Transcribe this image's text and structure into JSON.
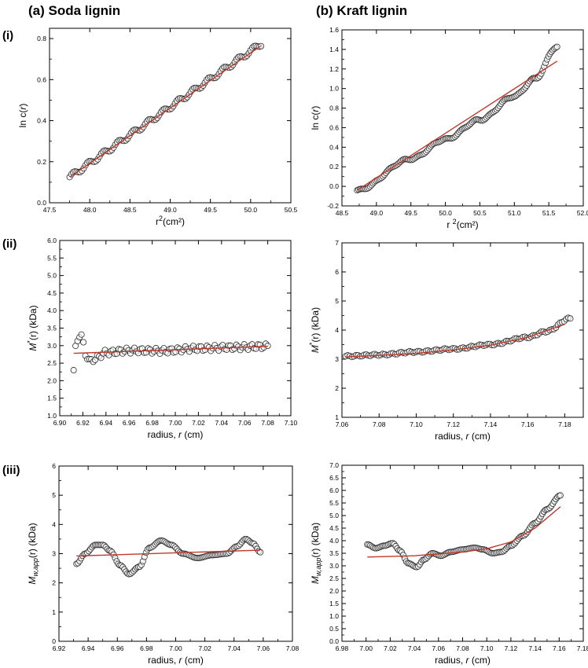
{
  "figure": {
    "column_titles": [
      "(a) Soda lignin",
      "(b) Kraft lignin"
    ],
    "row_labels": [
      "(i)",
      "(ii)",
      "(iii)"
    ]
  },
  "colors": {
    "fit_line": "#c0392b",
    "marker_edge": "#2b2b2b",
    "marker_fill": "#ffffff"
  },
  "chart_data": [
    {
      "id": "a-i",
      "type": "scatter",
      "title": "",
      "xlabel": {
        "pre": "r",
        "sup": "2",
        "post": "(cm²)"
      },
      "ylabel": {
        "pre": "ln c(",
        "italic": "r",
        "post": ")"
      },
      "xlim": [
        47.5,
        50.5
      ],
      "ylim": [
        0.0,
        0.85
      ],
      "xticks": [
        47.5,
        48.0,
        48.5,
        49.0,
        49.5,
        50.0,
        50.5
      ],
      "yticks": [
        0.0,
        0.2,
        0.4,
        0.6,
        0.8
      ],
      "xtick_decimals": 1,
      "ytick_decimals": 1,
      "series": [
        {
          "kind": "markers",
          "x_range": [
            47.75,
            50.13
          ],
          "count": 110,
          "base": "linear",
          "base_params": [
            47.75,
            0.125,
            50.13,
            0.775
          ],
          "wobble": [
            0.012,
            0.35
          ]
        },
        {
          "kind": "fit",
          "x": [
            47.75,
            50.13
          ],
          "y": [
            0.125,
            0.765
          ]
        }
      ]
    },
    {
      "id": "b-i",
      "type": "scatter",
      "title": "",
      "xlabel": {
        "pre": "r ",
        "sup": "2",
        "post": "(cm²)"
      },
      "ylabel": {
        "pre": "ln c(",
        "italic": "r",
        "post": ")"
      },
      "xlim": [
        48.5,
        52.0
      ],
      "ylim": [
        -0.2,
        1.6
      ],
      "xticks": [
        48.5,
        49.0,
        49.5,
        50.0,
        50.5,
        51.0,
        51.5,
        52.0
      ],
      "yticks": [
        -0.2,
        0.0,
        0.2,
        0.4,
        0.6,
        0.8,
        1.0,
        1.2,
        1.4,
        1.6
      ],
      "xtick_decimals": 1,
      "ytick_decimals": 1,
      "series": [
        {
          "kind": "markers",
          "x_range": [
            48.72,
            51.62
          ],
          "count": 140,
          "base": "curve",
          "base_params": [
            [
              48.72,
              -0.04
            ],
            [
              49.5,
              0.28
            ],
            [
              50.0,
              0.48
            ],
            [
              50.5,
              0.68
            ],
            [
              51.0,
              0.92
            ],
            [
              51.3,
              1.1
            ],
            [
              51.62,
              1.43
            ]
          ],
          "wobble": [
            0.01,
            0.3
          ]
        },
        {
          "kind": "fit",
          "x": [
            48.72,
            51.62
          ],
          "y": [
            -0.04,
            1.28
          ]
        }
      ]
    },
    {
      "id": "a-ii",
      "type": "scatter",
      "title": "",
      "xlabel": {
        "pre": "radius, ",
        "italic": "r",
        "post": " (cm)"
      },
      "ylabel": {
        "pre": "M",
        "sup": "*",
        "post": "(r) (kDa)",
        "italic_first": true
      },
      "xlim": [
        6.9,
        7.1
      ],
      "ylim": [
        1.0,
        6.0
      ],
      "xticks": [
        6.9,
        6.92,
        6.94,
        6.96,
        6.98,
        7.0,
        7.02,
        7.04,
        7.06,
        7.08,
        7.1
      ],
      "yticks": [
        1.0,
        1.5,
        2.0,
        2.5,
        3.0,
        3.5,
        4.0,
        4.5,
        5.0,
        5.5,
        6.0
      ],
      "xtick_decimals": 2,
      "ytick_decimals": 1,
      "series": [
        {
          "kind": "markers",
          "x_range": [
            6.912,
            7.08
          ],
          "count": 100,
          "base": "curve",
          "base_params": [
            [
              6.912,
              2.3
            ],
            [
              6.914,
              2.95
            ],
            [
              6.916,
              3.2
            ],
            [
              6.918,
              3.4
            ],
            [
              6.92,
              3.05
            ],
            [
              6.923,
              2.7
            ],
            [
              6.926,
              2.55
            ],
            [
              6.93,
              2.62
            ],
            [
              6.94,
              2.8
            ],
            [
              6.96,
              2.86
            ],
            [
              6.99,
              2.85
            ],
            [
              7.02,
              2.92
            ],
            [
              7.05,
              2.95
            ],
            [
              7.08,
              2.98
            ]
          ],
          "wobble": [
            0.08,
            0.8
          ]
        },
        {
          "kind": "fit",
          "x": [
            6.912,
            7.08
          ],
          "y": [
            2.78,
            2.98
          ]
        }
      ]
    },
    {
      "id": "b-ii",
      "type": "scatter",
      "title": "",
      "xlabel": {
        "pre": "radius, ",
        "italic": "r",
        "post": " (cm)"
      },
      "ylabel": {
        "pre": "M",
        "sup": "*",
        "post": "(r) (kDa)",
        "italic_first": true
      },
      "xlim": [
        7.06,
        7.19
      ],
      "ylim": [
        1.0,
        7.0
      ],
      "xticks": [
        7.06,
        7.08,
        7.1,
        7.12,
        7.14,
        7.16,
        7.18
      ],
      "yticks": [
        1,
        2,
        3,
        4,
        5,
        6,
        7
      ],
      "xtick_decimals": 2,
      "ytick_decimals": 0,
      "series": [
        {
          "kind": "markers",
          "x_range": [
            7.062,
            7.183
          ],
          "count": 110,
          "base": "curve",
          "base_params": [
            [
              7.062,
              3.1
            ],
            [
              7.08,
              3.15
            ],
            [
              7.1,
              3.25
            ],
            [
              7.12,
              3.35
            ],
            [
              7.14,
              3.5
            ],
            [
              7.16,
              3.75
            ],
            [
              7.17,
              3.95
            ],
            [
              7.183,
              4.4
            ]
          ],
          "wobble": [
            0.03,
            0.7
          ]
        },
        {
          "kind": "fit",
          "x": [
            7.062,
            7.08,
            7.1,
            7.12,
            7.14,
            7.16,
            7.18
          ],
          "y": [
            3.08,
            3.13,
            3.2,
            3.32,
            3.48,
            3.75,
            4.2
          ]
        }
      ]
    },
    {
      "id": "a-iii",
      "type": "scatter",
      "title": "",
      "xlabel": {
        "pre": "radius, ",
        "italic": "r",
        "post": " (cm)"
      },
      "ylabel": {
        "pre": "M",
        "sub": "w,app",
        "post": "(r) (kDa)",
        "italic_first": true
      },
      "xlim": [
        6.92,
        7.08
      ],
      "ylim": [
        0,
        6
      ],
      "xticks": [
        6.92,
        6.94,
        6.96,
        6.98,
        7.0,
        7.02,
        7.04,
        7.06,
        7.08
      ],
      "yticks": [
        0,
        1,
        2,
        3,
        4,
        5,
        6
      ],
      "xtick_decimals": 2,
      "ytick_decimals": 0,
      "series": [
        {
          "kind": "markers",
          "x_range": [
            6.932,
            7.058
          ],
          "count": 120,
          "base": "curve",
          "base_params": [
            [
              6.932,
              2.65
            ],
            [
              6.938,
              3.0
            ],
            [
              6.945,
              3.3
            ],
            [
              6.95,
              3.3
            ],
            [
              6.955,
              3.1
            ],
            [
              6.962,
              2.6
            ],
            [
              6.968,
              2.3
            ],
            [
              6.975,
              2.55
            ],
            [
              6.982,
              3.2
            ],
            [
              6.99,
              3.45
            ],
            [
              6.997,
              3.3
            ],
            [
              7.005,
              3.0
            ],
            [
              7.015,
              2.85
            ],
            [
              7.025,
              2.95
            ],
            [
              7.035,
              3.0
            ],
            [
              7.042,
              3.25
            ],
            [
              7.048,
              3.5
            ],
            [
              7.053,
              3.35
            ],
            [
              7.058,
              3.05
            ]
          ],
          "wobble": [
            0.0,
            0.0
          ]
        },
        {
          "kind": "fit",
          "x": [
            6.932,
            7.058
          ],
          "y": [
            2.92,
            3.12
          ]
        }
      ]
    },
    {
      "id": "b-iii",
      "type": "scatter",
      "title": "",
      "xlabel": {
        "pre": "radius, ",
        "italic": "r",
        "post": " (cm)"
      },
      "ylabel": {
        "pre": "M",
        "sub": "w,app",
        "post": "(r) (kDa)",
        "italic_first": true
      },
      "xlim": [
        6.98,
        7.18
      ],
      "ylim": [
        0.0,
        7.0
      ],
      "xticks": [
        6.98,
        7.0,
        7.02,
        7.04,
        7.06,
        7.08,
        7.1,
        7.12,
        7.14,
        7.16,
        7.18
      ],
      "yticks": [
        0.0,
        0.5,
        1.0,
        1.5,
        2.0,
        2.5,
        3.0,
        3.5,
        4.0,
        4.5,
        5.0,
        5.5,
        6.0,
        6.5,
        7.0
      ],
      "xtick_decimals": 2,
      "ytick_decimals": 1,
      "series": [
        {
          "kind": "markers",
          "x_range": [
            7.001,
            7.161
          ],
          "count": 130,
          "base": "curve",
          "base_params": [
            [
              7.001,
              3.85
            ],
            [
              7.008,
              3.7
            ],
            [
              7.015,
              3.8
            ],
            [
              7.022,
              3.9
            ],
            [
              7.028,
              3.6
            ],
            [
              7.035,
              3.1
            ],
            [
              7.042,
              2.95
            ],
            [
              7.048,
              3.25
            ],
            [
              7.055,
              3.5
            ],
            [
              7.062,
              3.4
            ],
            [
              7.07,
              3.55
            ],
            [
              7.08,
              3.65
            ],
            [
              7.09,
              3.72
            ],
            [
              7.097,
              3.65
            ],
            [
              7.105,
              3.5
            ],
            [
              7.112,
              3.55
            ],
            [
              7.12,
              3.8
            ],
            [
              7.13,
              4.2
            ],
            [
              7.14,
              4.7
            ],
            [
              7.15,
              5.25
            ],
            [
              7.161,
              5.8
            ]
          ],
          "wobble": [
            0.0,
            0.0
          ]
        },
        {
          "kind": "fit",
          "x": [
            7.001,
            7.04,
            7.08,
            7.1,
            7.12,
            7.14,
            7.161
          ],
          "y": [
            3.35,
            3.4,
            3.55,
            3.68,
            3.95,
            4.5,
            5.35
          ]
        }
      ]
    }
  ]
}
